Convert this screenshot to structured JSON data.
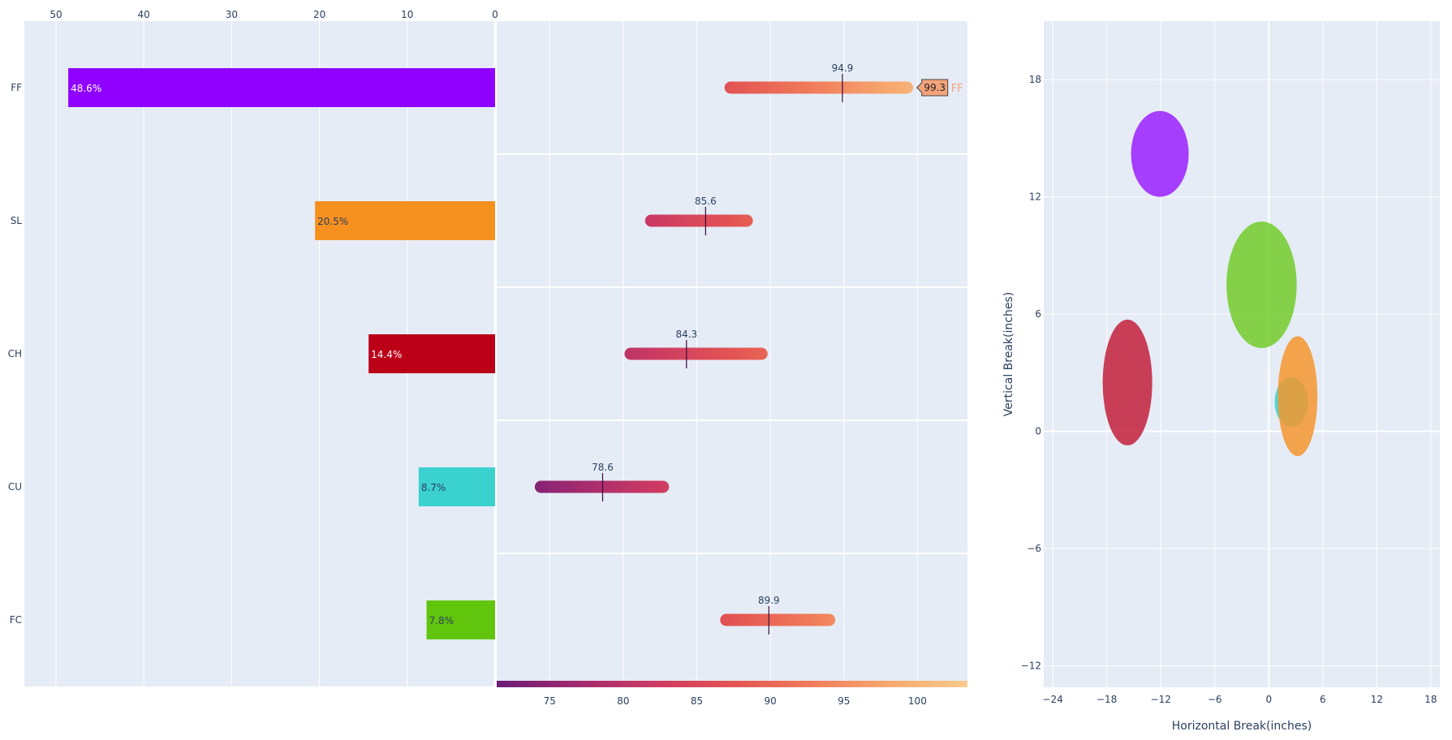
{
  "chart_data": [
    {
      "type": "bar",
      "orientation": "horizontal",
      "xaxis_side": "top",
      "xaxis_reversed": true,
      "categories": [
        "FF",
        "SL",
        "CH",
        "CU",
        "FC"
      ],
      "values": [
        48.6,
        20.5,
        14.4,
        8.7,
        7.8
      ],
      "labels": [
        "48.6%",
        "20.5%",
        "14.4%",
        "8.7%",
        "7.8%"
      ],
      "colors": [
        "#8f00ff",
        "#f5901e",
        "#bc0018",
        "#3bd1cf",
        "#60c50c"
      ],
      "label_colors": [
        "#ffffff",
        "#2a3f5f",
        "#ffffff",
        "#2a3f5f",
        "#2a3f5f"
      ],
      "xlim": [
        53.6,
        0
      ],
      "xticks": [
        50,
        40,
        30,
        20,
        10,
        0
      ],
      "xtick_labels": [
        "50",
        "40",
        "30",
        "20",
        "10",
        "0"
      ],
      "grid": true
    },
    {
      "type": "range",
      "description_title": "",
      "categories": [
        "FF",
        "SL",
        "CH",
        "CU",
        "FC"
      ],
      "ranges": [
        {
          "min": 87.3,
          "max": 99.3,
          "median": 94.9,
          "median_label": "94.9"
        },
        {
          "min": 81.9,
          "max": 88.4,
          "median": 85.6,
          "median_label": "85.6"
        },
        {
          "min": 80.5,
          "max": 89.4,
          "median": 84.3,
          "median_label": "84.3"
        },
        {
          "min": 74.4,
          "max": 82.7,
          "median": 78.6,
          "median_label": "78.6"
        },
        {
          "min": 87.0,
          "max": 94.0,
          "median": 89.9,
          "median_label": "89.9"
        }
      ],
      "hover": {
        "category": "FF",
        "value_label": "99.3",
        "name_label": "FF",
        "color": "#f4a37a"
      },
      "xlim": [
        71.4,
        103.4
      ],
      "xticks": [
        75,
        80,
        85,
        90,
        95,
        100
      ],
      "xtick_labels": [
        "75",
        "80",
        "85",
        "90",
        "95",
        "100"
      ],
      "colorscale": [
        "#6b1b77",
        "#a02a6f",
        "#cc3a63",
        "#e35453",
        "#f07b5a",
        "#f7a86f",
        "#f9cb8c"
      ],
      "colorscale_range": [
        71.4,
        103.4
      ],
      "grid": true
    },
    {
      "type": "scatter",
      "marker_shape": "ellipse",
      "xlabel": "Horizontal Break(inches)",
      "ylabel": "Vertical Break(inches)",
      "xlim": [
        -25.0,
        19.0
      ],
      "ylim": [
        -13.1,
        21.0
      ],
      "xticks": [
        -24,
        -18,
        -12,
        -6,
        0,
        6,
        12,
        18
      ],
      "xtick_labels": [
        "−24",
        "−18",
        "−12",
        "−6",
        "0",
        "6",
        "12",
        "18"
      ],
      "yticks": [
        -12,
        -6,
        0,
        6,
        12,
        18
      ],
      "ytick_labels": [
        "−12",
        "−6",
        "0",
        "6",
        "12",
        "18"
      ],
      "series": [
        {
          "name": "FF",
          "x": -12.1,
          "y": 14.2,
          "x_spread": 3.2,
          "y_spread": 2.2,
          "color": "#9b20ff"
        },
        {
          "name": "FC",
          "x": -0.8,
          "y": 7.5,
          "x_spread": 3.9,
          "y_spread": 3.24,
          "color": "#73cd2a"
        },
        {
          "name": "CH",
          "x": -15.7,
          "y": 2.5,
          "x_spread": 2.75,
          "y_spread": 3.22,
          "color": "#c3203a"
        },
        {
          "name": "CU",
          "x": 2.5,
          "y": 1.5,
          "x_spread": 1.85,
          "y_spread": 1.27,
          "color": "#3bd1cf"
        },
        {
          "name": "SL",
          "x": 3.2,
          "y": 1.8,
          "x_spread": 2.2,
          "y_spread": 3.07,
          "color": "#f5962e"
        }
      ],
      "grid": true
    }
  ]
}
